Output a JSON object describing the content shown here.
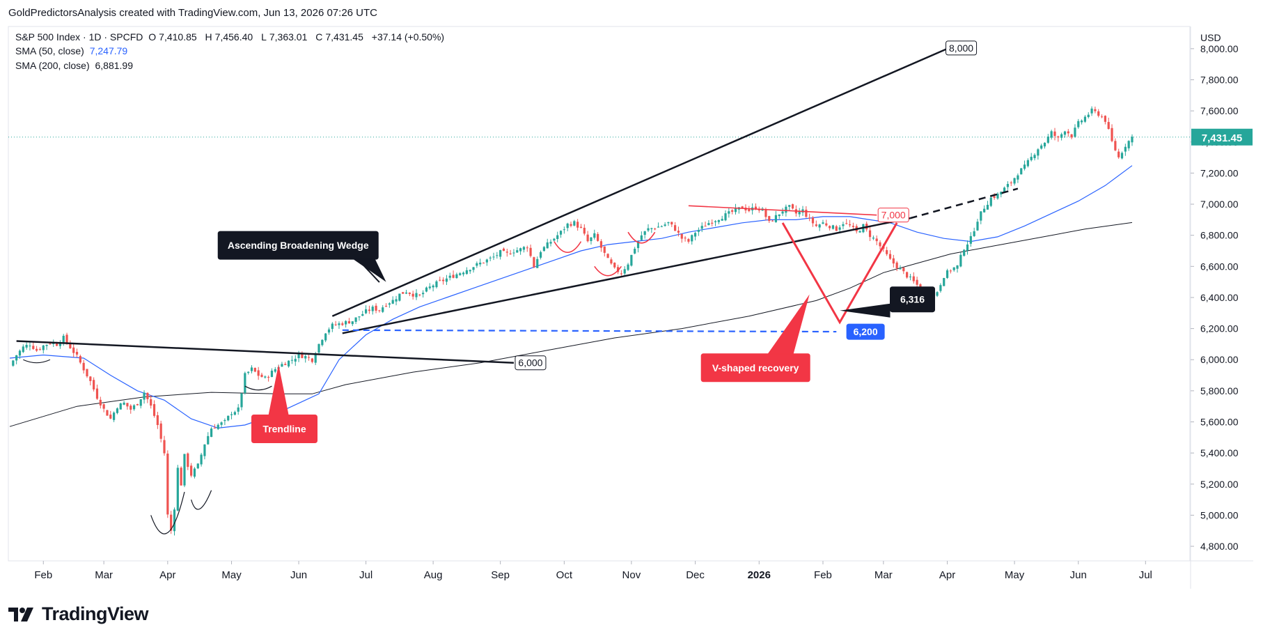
{
  "attribution": "GoldPredictorsAnalysis created with TradingView.com, Jun 13, 2026 07:26 UTC",
  "legend": {
    "symbol": "S&P 500 Index · 1D · SPCFD",
    "o_label": "O",
    "o_value": "7,410.85",
    "h_label": "H",
    "h_value": "7,456.40",
    "l_label": "L",
    "l_value": "7,363.01",
    "c_label": "C",
    "c_value": "7,431.45",
    "change": "+37.14 (+0.50%)",
    "sma50_label": "SMA (50, close)",
    "sma50_value": "7,247.79",
    "sma200_label": "SMA (200, close)",
    "sma200_value": "6,881.99"
  },
  "currency": "USD",
  "brand": "TradingView",
  "colors": {
    "up": "#26a69a",
    "down": "#ef5350",
    "sma50": "#2962ff",
    "sma200": "#131722",
    "annotation_red": "#f23645",
    "label_dark": "#131722",
    "support_blue": "#2962ff"
  },
  "chart_data": {
    "type": "candlestick",
    "x_ticks": [
      "Feb",
      "Mar",
      "Apr",
      "May",
      "Jun",
      "Jul",
      "Aug",
      "Sep",
      "Oct",
      "Nov",
      "Dec",
      "2026",
      "Feb",
      "Mar",
      "Apr",
      "May",
      "Jun",
      "Jul"
    ],
    "y_ticks": [
      "8,000.00",
      "7,800.00",
      "7,600.00",
      "7,400.00",
      "7,200.00",
      "7,000.00",
      "6,800.00",
      "6,600.00",
      "6,400.00",
      "6,200.00",
      "6,000.00",
      "5,800.00",
      "5,600.00",
      "5,400.00",
      "5,200.00",
      "5,000.00",
      "4,800.00"
    ],
    "ylim": [
      4760,
      8080
    ],
    "last_price": "7,431.45",
    "last_price_value": 7431.45,
    "close_path": [
      [
        0,
        5960
      ],
      [
        2,
        6030
      ],
      [
        4,
        6080
      ],
      [
        6,
        6100
      ],
      [
        8,
        6060
      ],
      [
        10,
        6090
      ],
      [
        12,
        6110
      ],
      [
        14,
        6100
      ],
      [
        16,
        6140
      ],
      [
        18,
        6080
      ],
      [
        20,
        6020
      ],
      [
        22,
        5940
      ],
      [
        24,
        5860
      ],
      [
        26,
        5760
      ],
      [
        28,
        5680
      ],
      [
        30,
        5620
      ],
      [
        32,
        5700
      ],
      [
        34,
        5720
      ],
      [
        36,
        5680
      ],
      [
        38,
        5720
      ],
      [
        40,
        5790
      ],
      [
        42,
        5700
      ],
      [
        44,
        5580
      ],
      [
        46,
        5400
      ],
      [
        47,
        5000
      ],
      [
        48,
        4900
      ],
      [
        49,
        5050
      ],
      [
        50,
        5300
      ],
      [
        51,
        5200
      ],
      [
        52,
        5380
      ],
      [
        54,
        5260
      ],
      [
        56,
        5320
      ],
      [
        58,
        5460
      ],
      [
        60,
        5560
      ],
      [
        62,
        5580
      ],
      [
        64,
        5600
      ],
      [
        66,
        5660
      ],
      [
        68,
        5680
      ],
      [
        70,
        5900
      ],
      [
        72,
        5940
      ],
      [
        74,
        5900
      ],
      [
        76,
        5880
      ],
      [
        78,
        5920
      ],
      [
        80,
        5960
      ],
      [
        82,
        5980
      ],
      [
        84,
        6000
      ],
      [
        86,
        6030
      ],
      [
        88,
        6020
      ],
      [
        90,
        6000
      ],
      [
        92,
        6100
      ],
      [
        94,
        6180
      ],
      [
        96,
        6220
      ],
      [
        98,
        6230
      ],
      [
        100,
        6240
      ],
      [
        102,
        6250
      ],
      [
        104,
        6280
      ],
      [
        106,
        6310
      ],
      [
        108,
        6330
      ],
      [
        110,
        6320
      ],
      [
        112,
        6360
      ],
      [
        114,
        6380
      ],
      [
        116,
        6420
      ],
      [
        118,
        6440
      ],
      [
        120,
        6420
      ],
      [
        122,
        6410
      ],
      [
        124,
        6450
      ],
      [
        126,
        6480
      ],
      [
        128,
        6500
      ],
      [
        130,
        6520
      ],
      [
        132,
        6540
      ],
      [
        134,
        6560
      ],
      [
        136,
        6580
      ],
      [
        138,
        6600
      ],
      [
        140,
        6620
      ],
      [
        142,
        6640
      ],
      [
        144,
        6660
      ],
      [
        146,
        6690
      ],
      [
        148,
        6680
      ],
      [
        150,
        6700
      ],
      [
        152,
        6710
      ],
      [
        154,
        6730
      ],
      [
        156,
        6600
      ],
      [
        158,
        6700
      ],
      [
        160,
        6740
      ],
      [
        162,
        6780
      ],
      [
        164,
        6820
      ],
      [
        166,
        6870
      ],
      [
        168,
        6880
      ],
      [
        170,
        6840
      ],
      [
        172,
        6760
      ],
      [
        174,
        6800
      ],
      [
        176,
        6720
      ],
      [
        178,
        6640
      ],
      [
        180,
        6580
      ],
      [
        182,
        6560
      ],
      [
        184,
        6620
      ],
      [
        186,
        6720
      ],
      [
        188,
        6800
      ],
      [
        190,
        6840
      ],
      [
        192,
        6850
      ],
      [
        194,
        6860
      ],
      [
        196,
        6880
      ],
      [
        198,
        6840
      ],
      [
        200,
        6780
      ],
      [
        202,
        6760
      ],
      [
        204,
        6820
      ],
      [
        206,
        6850
      ],
      [
        208,
        6880
      ],
      [
        210,
        6900
      ],
      [
        212,
        6920
      ],
      [
        214,
        6940
      ],
      [
        216,
        6960
      ],
      [
        218,
        6980
      ],
      [
        220,
        6960
      ],
      [
        222,
        6980
      ],
      [
        224,
        6960
      ],
      [
        226,
        6880
      ],
      [
        228,
        6920
      ],
      [
        230,
        6960
      ],
      [
        232,
        6980
      ],
      [
        234,
        6940
      ],
      [
        236,
        6960
      ],
      [
        238,
        6900
      ],
      [
        240,
        6860
      ],
      [
        242,
        6880
      ],
      [
        244,
        6860
      ],
      [
        246,
        6840
      ],
      [
        248,
        6880
      ],
      [
        250,
        6860
      ],
      [
        252,
        6820
      ],
      [
        254,
        6860
      ],
      [
        256,
        6800
      ],
      [
        258,
        6760
      ],
      [
        260,
        6700
      ],
      [
        262,
        6640
      ],
      [
        264,
        6600
      ],
      [
        266,
        6560
      ],
      [
        268,
        6520
      ],
      [
        270,
        6480
      ],
      [
        272,
        6420
      ],
      [
        274,
        6360
      ],
      [
        276,
        6440
      ],
      [
        278,
        6540
      ],
      [
        280,
        6580
      ],
      [
        282,
        6600
      ],
      [
        284,
        6720
      ],
      [
        286,
        6780
      ],
      [
        288,
        6900
      ],
      [
        290,
        6980
      ],
      [
        292,
        7040
      ],
      [
        294,
        7060
      ],
      [
        296,
        7100
      ],
      [
        298,
        7140
      ],
      [
        300,
        7200
      ],
      [
        302,
        7240
      ],
      [
        304,
        7300
      ],
      [
        306,
        7360
      ],
      [
        308,
        7400
      ],
      [
        310,
        7460
      ],
      [
        312,
        7420
      ],
      [
        314,
        7480
      ],
      [
        316,
        7440
      ],
      [
        318,
        7520
      ],
      [
        320,
        7560
      ],
      [
        322,
        7600
      ],
      [
        324,
        7580
      ],
      [
        326,
        7540
      ],
      [
        328,
        7400
      ],
      [
        330,
        7300
      ],
      [
        332,
        7380
      ],
      [
        334,
        7431.45
      ]
    ],
    "x_tick_index": [
      10,
      28,
      47,
      66,
      86,
      106,
      126,
      146,
      165,
      185,
      204,
      223,
      242,
      260,
      279,
      299,
      318,
      338
    ],
    "sma50_path": [
      [
        0,
        6010
      ],
      [
        10,
        6030
      ],
      [
        22,
        6010
      ],
      [
        30,
        5900
      ],
      [
        38,
        5800
      ],
      [
        46,
        5740
      ],
      [
        54,
        5620
      ],
      [
        62,
        5560
      ],
      [
        70,
        5580
      ],
      [
        78,
        5640
      ],
      [
        86,
        5720
      ],
      [
        92,
        5780
      ],
      [
        98,
        6000
      ],
      [
        106,
        6160
      ],
      [
        114,
        6260
      ],
      [
        122,
        6340
      ],
      [
        130,
        6400
      ],
      [
        138,
        6460
      ],
      [
        146,
        6520
      ],
      [
        154,
        6580
      ],
      [
        162,
        6640
      ],
      [
        170,
        6700
      ],
      [
        178,
        6740
      ],
      [
        186,
        6760
      ],
      [
        194,
        6780
      ],
      [
        202,
        6820
      ],
      [
        210,
        6850
      ],
      [
        218,
        6880
      ],
      [
        226,
        6900
      ],
      [
        234,
        6900
      ],
      [
        242,
        6920
      ],
      [
        250,
        6920
      ],
      [
        256,
        6900
      ],
      [
        262,
        6880
      ],
      [
        270,
        6820
      ],
      [
        278,
        6780
      ],
      [
        286,
        6760
      ],
      [
        294,
        6790
      ],
      [
        302,
        6860
      ],
      [
        310,
        6940
      ],
      [
        318,
        7020
      ],
      [
        326,
        7120
      ],
      [
        334,
        7247.79
      ]
    ],
    "sma200_path": [
      [
        0,
        5570
      ],
      [
        20,
        5700
      ],
      [
        40,
        5760
      ],
      [
        60,
        5790
      ],
      [
        80,
        5780
      ],
      [
        90,
        5780
      ],
      [
        100,
        5840
      ],
      [
        120,
        5920
      ],
      [
        140,
        5980
      ],
      [
        160,
        6060
      ],
      [
        180,
        6140
      ],
      [
        200,
        6200
      ],
      [
        220,
        6280
      ],
      [
        240,
        6380
      ],
      [
        250,
        6460
      ],
      [
        260,
        6560
      ],
      [
        270,
        6620
      ],
      [
        280,
        6680
      ],
      [
        290,
        6720
      ],
      [
        300,
        6760
      ],
      [
        310,
        6800
      ],
      [
        320,
        6840
      ],
      [
        334,
        6881.99
      ]
    ],
    "annotations": {
      "wedge_label": "Ascending Broadening Wedge",
      "trendline_label": "Trendline",
      "vshape_label": "V-shaped recovery",
      "level_8000": "8,000",
      "level_7000": "7,000",
      "level_6316": "6,316",
      "level_6200": "6,200",
      "level_6000": "6,000"
    }
  }
}
